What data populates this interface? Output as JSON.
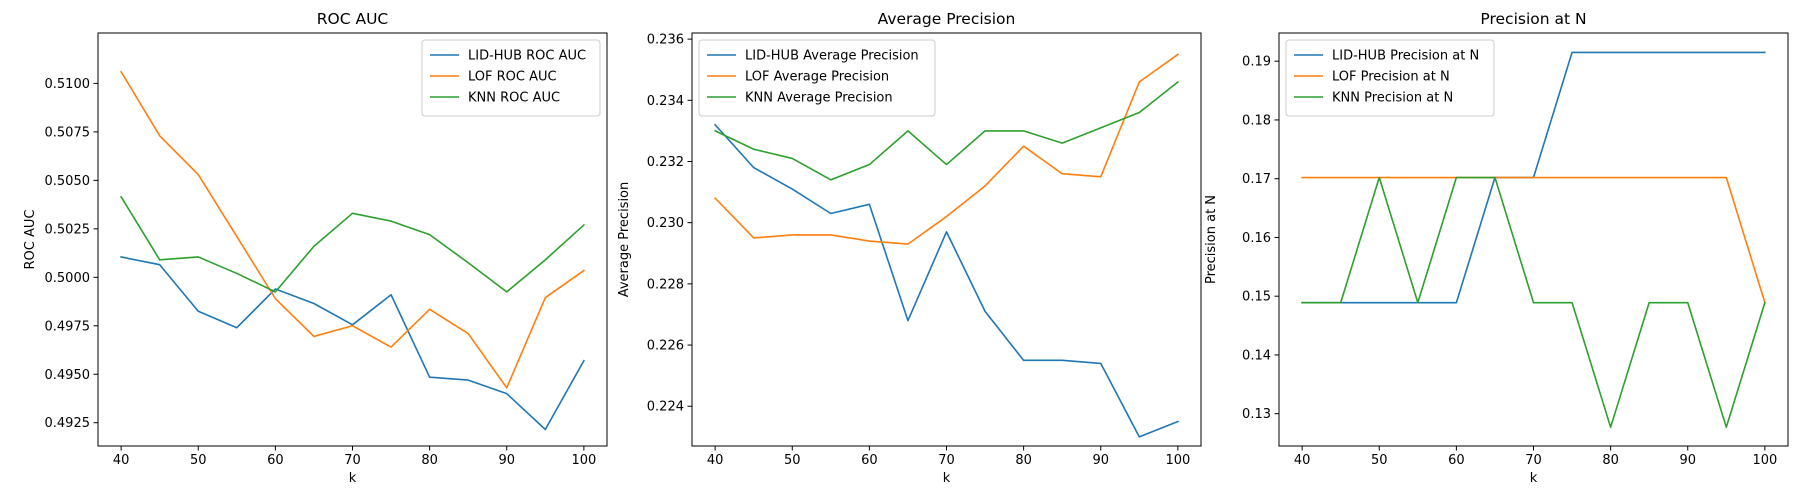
{
  "chart_data": [
    {
      "type": "line",
      "title": "ROC AUC",
      "xlabel": "k",
      "ylabel": "ROC AUC",
      "xlim": [
        37,
        103
      ],
      "ylim": [
        0.4913,
        0.5126
      ],
      "xticks": [
        40,
        50,
        60,
        70,
        80,
        90,
        100
      ],
      "yticks": [
        0.4925,
        0.495,
        0.4975,
        0.5,
        0.5025,
        0.505,
        0.5075,
        0.51
      ],
      "ytick_labels": [
        "0.4925",
        "0.4950",
        "0.4975",
        "0.5000",
        "0.5025",
        "0.5050",
        "0.5075",
        "0.5100"
      ],
      "x": [
        40,
        45,
        50,
        55,
        60,
        65,
        70,
        75,
        80,
        85,
        90,
        95,
        100
      ],
      "legend_position": "top-right",
      "grid": false,
      "series": [
        {
          "name": "LID-HUB ROC AUC",
          "color": "#1f77b4",
          "values": [
            0.50105,
            0.50065,
            0.49825,
            0.4974,
            0.4994,
            0.49865,
            0.49755,
            0.4991,
            0.49485,
            0.4947,
            0.494,
            0.49215,
            0.4957
          ]
        },
        {
          "name": "LOF ROC AUC",
          "color": "#ff7f0e",
          "values": [
            0.5106,
            0.5073,
            0.5053,
            0.5021,
            0.4989,
            0.49695,
            0.4975,
            0.4964,
            0.49835,
            0.4971,
            0.4943,
            0.49895,
            0.50035
          ]
        },
        {
          "name": "KNN ROC AUC",
          "color": "#2ca02c",
          "values": [
            0.50415,
            0.5009,
            0.50105,
            0.5002,
            0.49925,
            0.5016,
            0.5033,
            0.5029,
            0.5022,
            0.50075,
            0.49925,
            0.5009,
            0.5027
          ]
        }
      ]
    },
    {
      "type": "line",
      "title": "Average Precision",
      "xlabel": "k",
      "ylabel": "Average Precision",
      "xlim": [
        37,
        103
      ],
      "ylim": [
        0.2227,
        0.2362
      ],
      "xticks": [
        40,
        50,
        60,
        70,
        80,
        90,
        100
      ],
      "yticks": [
        0.224,
        0.226,
        0.228,
        0.23,
        0.232,
        0.234,
        0.236
      ],
      "ytick_labels": [
        "0.224",
        "0.226",
        "0.228",
        "0.230",
        "0.232",
        "0.234",
        "0.236"
      ],
      "x": [
        40,
        45,
        50,
        55,
        60,
        65,
        70,
        75,
        80,
        85,
        90,
        95,
        100
      ],
      "legend_position": "top-left",
      "grid": false,
      "series": [
        {
          "name": "LID-HUB Average Precision",
          "color": "#1f77b4",
          "values": [
            0.2332,
            0.2318,
            0.2311,
            0.2303,
            0.2306,
            0.2268,
            0.2297,
            0.2271,
            0.2255,
            0.2255,
            0.2254,
            0.223,
            0.2235
          ]
        },
        {
          "name": "LOF Average Precision",
          "color": "#ff7f0e",
          "values": [
            0.2308,
            0.2295,
            0.2296,
            0.2296,
            0.2294,
            0.2293,
            0.2302,
            0.2312,
            0.2325,
            0.2316,
            0.2315,
            0.2346,
            0.2355
          ]
        },
        {
          "name": "KNN Average Precision",
          "color": "#2ca02c",
          "values": [
            0.233,
            0.2324,
            0.2321,
            0.2314,
            0.2319,
            0.233,
            0.2319,
            0.233,
            0.233,
            0.2326,
            0.2331,
            0.2336,
            0.2346
          ]
        }
      ]
    },
    {
      "type": "line",
      "title": "Precision at N",
      "xlabel": "k",
      "ylabel": "Precision at N",
      "xlim": [
        37,
        103
      ],
      "ylim": [
        0.1245,
        0.1948
      ],
      "xticks": [
        40,
        50,
        60,
        70,
        80,
        90,
        100
      ],
      "yticks": [
        0.13,
        0.14,
        0.15,
        0.16,
        0.17,
        0.18,
        0.19
      ],
      "ytick_labels": [
        "0.13",
        "0.14",
        "0.15",
        "0.16",
        "0.17",
        "0.18",
        "0.19"
      ],
      "x": [
        40,
        45,
        50,
        55,
        60,
        65,
        70,
        75,
        80,
        85,
        90,
        95,
        100
      ],
      "legend_position": "top-left",
      "grid": false,
      "series": [
        {
          "name": "LID-HUB Precision at N",
          "color": "#1f77b4",
          "values": [
            0.1489,
            0.1489,
            0.1489,
            0.1489,
            0.1489,
            0.1702,
            0.1702,
            0.1915,
            0.1915,
            0.1915,
            0.1915,
            0.1915,
            0.1915
          ]
        },
        {
          "name": "LOF Precision at N",
          "color": "#ff7f0e",
          "values": [
            0.1702,
            0.1702,
            0.1702,
            0.1702,
            0.1702,
            0.1702,
            0.1702,
            0.1702,
            0.1702,
            0.1702,
            0.1702,
            0.1702,
            0.1489
          ]
        },
        {
          "name": "KNN Precision at N",
          "color": "#2ca02c",
          "values": [
            0.1489,
            0.1489,
            0.1702,
            0.1489,
            0.1702,
            0.1702,
            0.1489,
            0.1489,
            0.1277,
            0.1489,
            0.1489,
            0.1277,
            0.1489
          ]
        }
      ]
    }
  ]
}
